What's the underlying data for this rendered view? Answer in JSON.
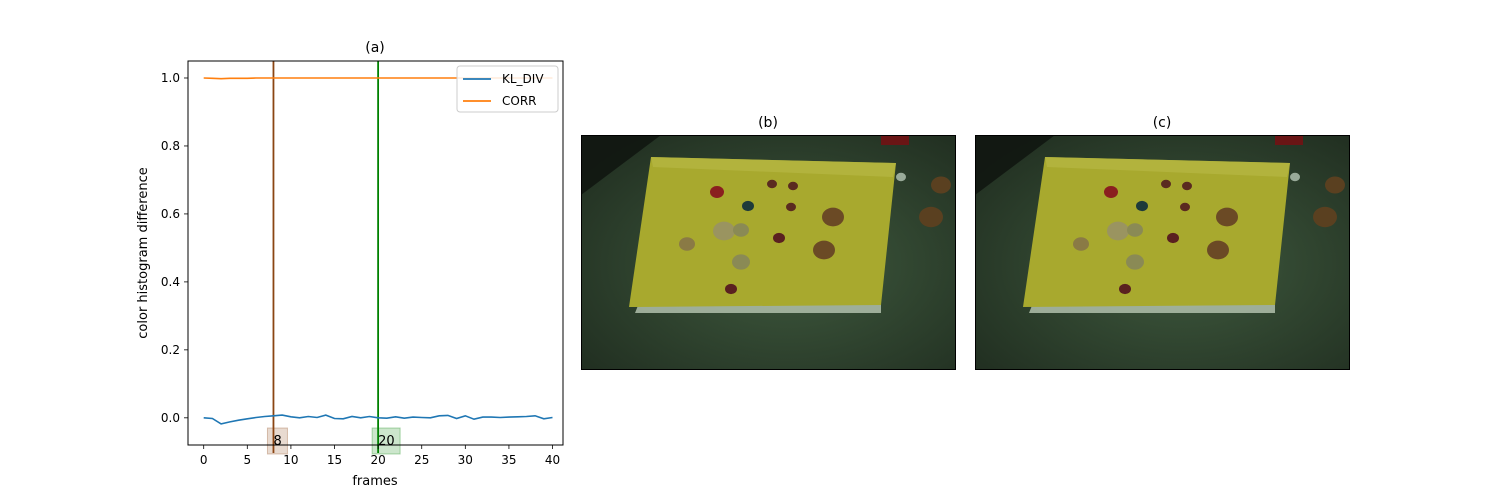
{
  "chart_data": [
    {
      "type": "line",
      "title": "(a)",
      "xlabel": "frames",
      "ylabel": "color histogram difference",
      "xlim": [
        -1.8,
        41.2
      ],
      "ylim": [
        -0.08,
        1.05
      ],
      "xticks": [
        0,
        5,
        10,
        15,
        20,
        25,
        30,
        35,
        40
      ],
      "yticks": [
        0.0,
        0.2,
        0.4,
        0.6,
        0.8,
        1.0
      ],
      "grid": false,
      "legend_position": "top-right",
      "x": [
        0,
        1,
        2,
        3,
        4,
        5,
        6,
        7,
        8,
        9,
        10,
        11,
        12,
        13,
        14,
        15,
        16,
        17,
        18,
        19,
        20,
        21,
        22,
        23,
        24,
        25,
        26,
        27,
        28,
        29,
        30,
        31,
        32,
        33,
        34,
        35,
        36,
        37,
        38,
        39,
        40
      ],
      "series": [
        {
          "name": "KL_DIV",
          "color": "#1f77b4",
          "values": [
            0.0,
            -0.002,
            -0.018,
            -0.012,
            -0.007,
            -0.003,
            0.001,
            0.004,
            0.006,
            0.008,
            0.003,
            0.0,
            0.004,
            0.001,
            0.008,
            -0.002,
            -0.003,
            0.004,
            0.0,
            0.004,
            0.0,
            -0.001,
            0.003,
            -0.001,
            0.002,
            0.001,
            0.0,
            0.006,
            0.007,
            -0.002,
            0.006,
            -0.004,
            0.002,
            0.002,
            0.001,
            0.002,
            0.003,
            0.004,
            0.006,
            -0.003,
            0.001
          ]
        },
        {
          "name": "CORR",
          "color": "#ff7f0e",
          "values": [
            1.0,
            0.999,
            0.998,
            0.999,
            0.999,
            0.999,
            1.0,
            1.0,
            1.0,
            1.0,
            1.0,
            1.0,
            1.0,
            1.0,
            1.0,
            1.0,
            1.0,
            1.0,
            1.0,
            1.0,
            1.0,
            1.0,
            1.0,
            1.0,
            1.0,
            1.0,
            1.0,
            1.0,
            1.0,
            1.0,
            1.0,
            1.0,
            1.0,
            1.0,
            1.0,
            1.0,
            1.0,
            1.0,
            1.0,
            1.0,
            1.0
          ]
        }
      ],
      "markers": [
        {
          "frame": 8,
          "label": "8",
          "color": "#8b4513"
        },
        {
          "frame": 20,
          "label": "20",
          "color": "#008000"
        }
      ]
    }
  ],
  "panels": {
    "b_title": "(b)",
    "c_title": "(c)"
  }
}
